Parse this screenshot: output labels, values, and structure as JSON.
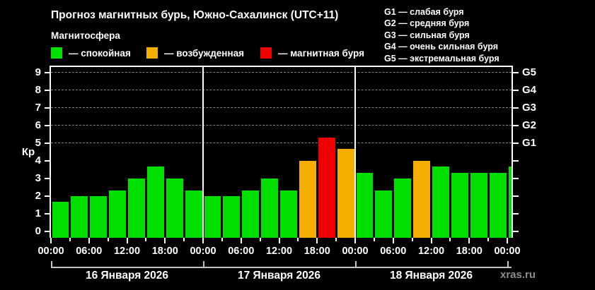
{
  "header": {
    "title": "Прогноз магнитных бурь, Южно-Сахалинск (UTC+11)",
    "subtitle": "Магнитосфера"
  },
  "storm_scale_legend": [
    "G1 — слабая буря",
    "G2 — средняя буря",
    "G3 — сильная буря",
    "G4 — очень сильная буря",
    "G5 — экстремальная буря"
  ],
  "activity_legend": [
    {
      "name": "quiet",
      "label": "— спокойная",
      "color": "#00e000"
    },
    {
      "name": "excited",
      "label": "— возбужденная",
      "color": "#f3ae00"
    },
    {
      "name": "storm",
      "label": "— магнитная буря",
      "color": "#ef0000"
    }
  ],
  "watermark": "xras.ru",
  "chart_data": {
    "type": "bar",
    "title": "Прогноз магнитных бурь, Южно-Сахалинск (UTC+11)",
    "ylabel": "Кр",
    "ylim": [
      0,
      9
    ],
    "yticks": [
      0,
      1,
      2,
      3,
      4,
      5,
      6,
      7,
      8,
      9
    ],
    "g_labels": [
      {
        "kp": 5,
        "label": "G1"
      },
      {
        "kp": 6,
        "label": "G2"
      },
      {
        "kp": 7,
        "label": "G3"
      },
      {
        "kp": 8,
        "label": "G4"
      },
      {
        "kp": 9,
        "label": "G5"
      }
    ],
    "gridlines_at_kp": [
      5,
      6,
      7,
      8,
      9
    ],
    "bar_interval_hours": 3,
    "x_time_tick_labels": [
      "00:00",
      "06:00",
      "12:00",
      "18:00",
      "00:00",
      "06:00",
      "12:00",
      "18:00",
      "00:00",
      "06:00",
      "12:00",
      "18:00",
      "00:00"
    ],
    "day_labels": [
      "16 Января 2026",
      "17 Января 2026",
      "18 Января 2026"
    ],
    "colors": {
      "quiet": "#00e000",
      "excited": "#f3ae00",
      "storm": "#ef0000"
    },
    "thresholds": {
      "excited_min": 4,
      "storm_min": 5
    },
    "values": [
      1.67,
      2,
      2,
      2.33,
      3,
      3.67,
      3,
      2.33,
      2,
      2,
      2.33,
      3,
      2.33,
      4,
      5.33,
      4.67,
      3.33,
      2.33,
      3,
      4,
      3.67,
      3.33,
      3.33,
      3.33,
      3.67
    ]
  }
}
